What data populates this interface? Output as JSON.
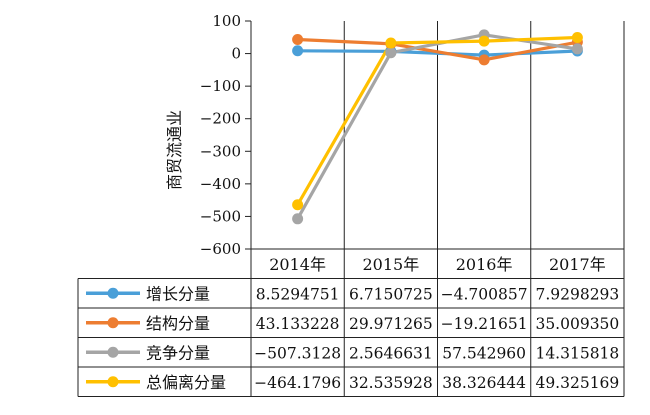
{
  "chart_data": {
    "type": "line",
    "title": "",
    "xlabel": "",
    "ylabel": "商贸流通业",
    "ylim": [
      -600,
      100
    ],
    "y_ticks": [
      "100",
      "0",
      "−100",
      "−200",
      "−300",
      "−400",
      "−500",
      "−600"
    ],
    "y_tick_values": [
      100,
      0,
      -100,
      -200,
      -300,
      -400,
      -500,
      -600
    ],
    "grid": false,
    "legend": "data-table-left",
    "categories": [
      "2014年",
      "2015年",
      "2016年",
      "2017年"
    ],
    "series": [
      {
        "name": "增长分量",
        "color": "#4a9fd8",
        "values": [
          8.5294751,
          6.7150725,
          -4.700857,
          7.9298293
        ],
        "labels": [
          "8.5294751",
          "6.7150725",
          "−4.700857",
          "7.9298293"
        ]
      },
      {
        "name": "结构分量",
        "color": "#ed7d31",
        "values": [
          43.133228,
          29.971265,
          -19.21651,
          35.00935
        ],
        "labels": [
          "43.133228",
          "29.971265",
          "−19.21651",
          "35.009350"
        ]
      },
      {
        "name": "竞争分量",
        "color": "#a5a5a5",
        "values": [
          -507.3128,
          2.5646631,
          57.54296,
          14.315818
        ],
        "labels": [
          "−507.3128",
          "2.5646631",
          "57.542960",
          "14.315818"
        ]
      },
      {
        "name": "总偏离分量",
        "color": "#ffc000",
        "values": [
          -464.1796,
          32.535928,
          38.326444,
          49.325169
        ],
        "labels": [
          "−464.1796",
          "32.535928",
          "38.326444",
          "49.325169"
        ]
      }
    ]
  }
}
